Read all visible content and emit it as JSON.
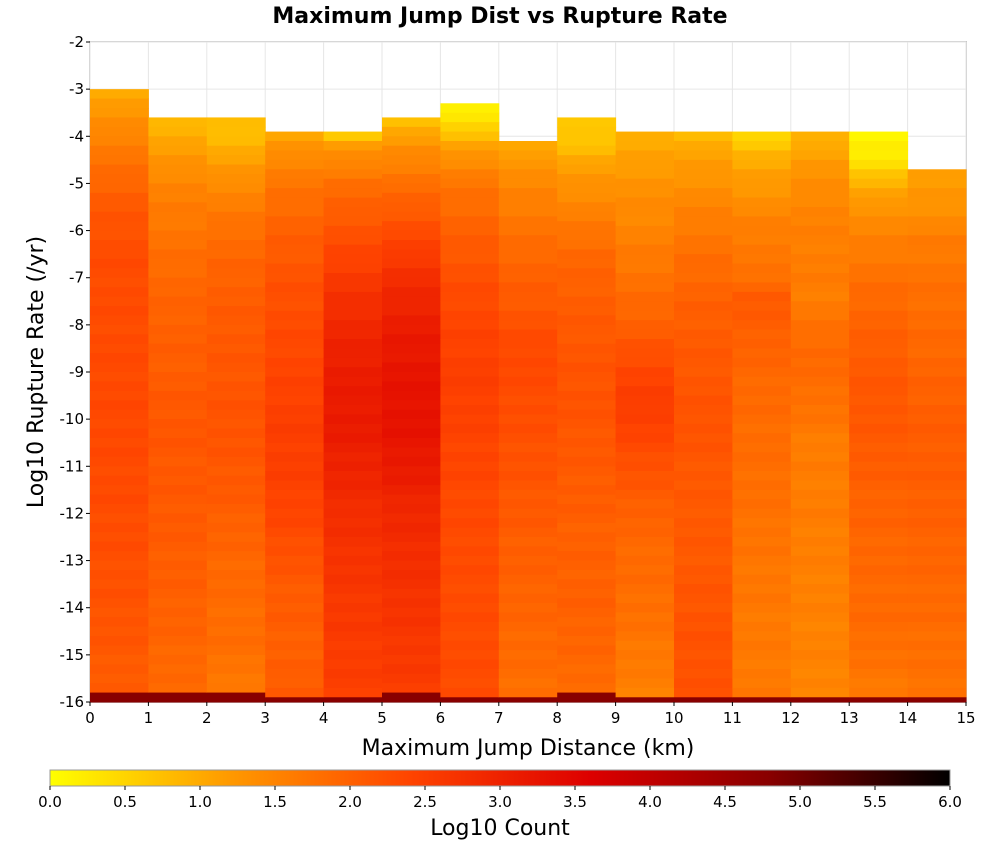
{
  "chart_data": {
    "type": "heatmap",
    "title": "Maximum Jump Dist vs Rupture Rate",
    "xlabel": "Maximum Jump Distance (km)",
    "ylabel": "Log10 Rupture Rate (/yr)",
    "xlim": [
      0,
      15
    ],
    "ylim": [
      -16,
      -2
    ],
    "x_ticks": [
      "0",
      "1",
      "2",
      "3",
      "4",
      "5",
      "6",
      "7",
      "8",
      "9",
      "10",
      "11",
      "12",
      "13",
      "14",
      "15"
    ],
    "y_ticks": [
      "-2",
      "-3",
      "-4",
      "-5",
      "-6",
      "-7",
      "-8",
      "-9",
      "-10",
      "-11",
      "-12",
      "-13",
      "-14",
      "-15",
      "-16"
    ],
    "grid": true,
    "x_bin_edges": [
      0,
      1,
      2,
      3,
      4,
      5,
      6,
      7,
      8,
      9,
      10,
      11,
      12,
      13,
      14,
      15
    ],
    "y_bin_size": 0.2,
    "colorbar": {
      "label": "Log10 Count",
      "range": [
        0.0,
        6.0
      ],
      "ticks": [
        "0.0",
        "0.5",
        "1.0",
        "1.5",
        "2.0",
        "2.5",
        "3.0",
        "3.5",
        "4.0",
        "4.5",
        "5.0",
        "5.5",
        "6.0"
      ],
      "colors": [
        "#ffff00",
        "#ff9900",
        "#ff4400",
        "#dd0000",
        "#880000",
        "#000000"
      ]
    },
    "columns": [
      {
        "x": [
          0,
          1
        ],
        "top": -3.0,
        "bottom_value": 4.8,
        "profile": [
          [
            -3.0,
            1.0
          ],
          [
            -3.6,
            1.3
          ],
          [
            -4.4,
            1.7
          ],
          [
            -5.4,
            2.1
          ],
          [
            -6.5,
            2.3
          ],
          [
            -8.0,
            2.3
          ],
          [
            -10.0,
            2.35
          ],
          [
            -12.0,
            2.3
          ],
          [
            -14.0,
            2.2
          ],
          [
            -15.8,
            2.05
          ]
        ]
      },
      {
        "x": [
          1,
          2
        ],
        "top": -3.6,
        "bottom_value": 4.8,
        "profile": [
          [
            -3.6,
            0.8
          ],
          [
            -4.0,
            1.0
          ],
          [
            -5.0,
            1.5
          ],
          [
            -6.0,
            1.7
          ],
          [
            -7.0,
            1.9
          ],
          [
            -8.0,
            2.0
          ],
          [
            -9.0,
            2.05
          ],
          [
            -10.0,
            2.15
          ],
          [
            -12.0,
            2.1
          ],
          [
            -14.0,
            2.0
          ],
          [
            -15.8,
            1.85
          ]
        ]
      },
      {
        "x": [
          2,
          3
        ],
        "top": -3.6,
        "bottom_value": 4.8,
        "profile": [
          [
            -3.6,
            0.7
          ],
          [
            -4.0,
            0.8
          ],
          [
            -5.0,
            1.4
          ],
          [
            -6.0,
            1.8
          ],
          [
            -7.0,
            2.0
          ],
          [
            -8.0,
            2.1
          ],
          [
            -9.0,
            2.15
          ],
          [
            -10.0,
            2.2
          ],
          [
            -11.5,
            2.1
          ],
          [
            -13.0,
            1.9
          ],
          [
            -15.0,
            1.8
          ],
          [
            -15.8,
            1.6
          ]
        ]
      },
      {
        "x": [
          3,
          4
        ],
        "top": -3.9,
        "bottom_value": 4.8,
        "profile": [
          [
            -3.9,
            1.0
          ],
          [
            -4.4,
            1.4
          ],
          [
            -5.0,
            1.7
          ],
          [
            -6.0,
            2.0
          ],
          [
            -7.0,
            2.2
          ],
          [
            -8.0,
            2.3
          ],
          [
            -9.0,
            2.4
          ],
          [
            -10.0,
            2.5
          ],
          [
            -11.0,
            2.5
          ],
          [
            -12.0,
            2.4
          ],
          [
            -13.5,
            2.1
          ],
          [
            -15.0,
            2.0
          ],
          [
            -15.8,
            2.1
          ]
        ]
      },
      {
        "x": [
          4,
          5
        ],
        "top": -3.9,
        "bottom_value": 4.8,
        "profile": [
          [
            -3.9,
            0.3
          ],
          [
            -4.2,
            1.2
          ],
          [
            -5.0,
            1.8
          ],
          [
            -6.0,
            2.2
          ],
          [
            -7.0,
            2.6
          ],
          [
            -8.0,
            2.9
          ],
          [
            -9.0,
            3.1
          ],
          [
            -10.0,
            3.15
          ],
          [
            -11.0,
            3.0
          ],
          [
            -12.0,
            2.8
          ],
          [
            -13.0,
            2.7
          ],
          [
            -14.0,
            2.6
          ],
          [
            -15.0,
            2.55
          ],
          [
            -15.8,
            2.5
          ]
        ]
      },
      {
        "x": [
          5,
          6
        ],
        "top": -3.6,
        "bottom_value": 4.8,
        "profile": [
          [
            -3.6,
            0.7
          ],
          [
            -4.2,
            1.3
          ],
          [
            -5.0,
            1.8
          ],
          [
            -6.0,
            2.3
          ],
          [
            -7.0,
            2.8
          ],
          [
            -8.0,
            3.1
          ],
          [
            -9.0,
            3.25
          ],
          [
            -10.0,
            3.3
          ],
          [
            -11.0,
            3.15
          ],
          [
            -12.0,
            2.9
          ],
          [
            -13.0,
            2.8
          ],
          [
            -14.0,
            2.7
          ],
          [
            -15.0,
            2.6
          ],
          [
            -15.8,
            2.55
          ]
        ]
      },
      {
        "x": [
          6,
          7
        ],
        "top": -3.3,
        "bottom_value": 4.8,
        "profile": [
          [
            -3.3,
            0.1
          ],
          [
            -3.8,
            0.5
          ],
          [
            -4.4,
            1.3
          ],
          [
            -5.0,
            1.7
          ],
          [
            -6.0,
            2.0
          ],
          [
            -7.0,
            2.25
          ],
          [
            -8.0,
            2.4
          ],
          [
            -9.0,
            2.5
          ],
          [
            -10.0,
            2.45
          ],
          [
            -11.5,
            2.35
          ],
          [
            -13.0,
            2.3
          ],
          [
            -14.5,
            2.3
          ],
          [
            -15.8,
            2.3
          ]
        ]
      },
      {
        "x": [
          7,
          8
        ],
        "top": -4.1,
        "bottom_value": 4.8,
        "profile": [
          [
            -4.1,
            0.9
          ],
          [
            -4.6,
            1.3
          ],
          [
            -5.5,
            1.6
          ],
          [
            -6.5,
            1.9
          ],
          [
            -7.5,
            2.1
          ],
          [
            -8.5,
            2.35
          ],
          [
            -9.5,
            2.3
          ],
          [
            -11.0,
            2.2
          ],
          [
            -12.5,
            2.05
          ],
          [
            -14.0,
            1.95
          ],
          [
            -15.8,
            1.8
          ]
        ]
      },
      {
        "x": [
          8,
          9
        ],
        "top": -3.6,
        "bottom_value": 4.8,
        "profile": [
          [
            -3.6,
            0.7
          ],
          [
            -4.0,
            0.6
          ],
          [
            -4.6,
            1.1
          ],
          [
            -5.5,
            1.5
          ],
          [
            -6.5,
            1.9
          ],
          [
            -7.5,
            2.05
          ],
          [
            -8.5,
            2.15
          ],
          [
            -9.5,
            2.2
          ],
          [
            -11.0,
            2.1
          ],
          [
            -12.5,
            2.0
          ],
          [
            -14.0,
            2.0
          ],
          [
            -15.8,
            1.85
          ]
        ]
      },
      {
        "x": [
          9,
          10
        ],
        "top": -3.9,
        "bottom_value": 4.8,
        "profile": [
          [
            -3.9,
            0.9
          ],
          [
            -5.0,
            1.3
          ],
          [
            -6.0,
            1.5
          ],
          [
            -7.0,
            1.75
          ],
          [
            -8.0,
            2.0
          ],
          [
            -9.0,
            2.4
          ],
          [
            -9.8,
            2.55
          ],
          [
            -10.5,
            2.35
          ],
          [
            -11.5,
            2.1
          ],
          [
            -12.5,
            1.9
          ],
          [
            -14.0,
            1.8
          ],
          [
            -15.8,
            1.55
          ]
        ]
      },
      {
        "x": [
          10,
          11
        ],
        "top": -3.9,
        "bottom_value": 4.8,
        "profile": [
          [
            -3.9,
            0.8
          ],
          [
            -4.4,
            1.1
          ],
          [
            -5.5,
            1.5
          ],
          [
            -6.5,
            1.8
          ],
          [
            -7.5,
            2.0
          ],
          [
            -8.5,
            2.1
          ],
          [
            -10.0,
            2.2
          ],
          [
            -11.5,
            2.1
          ],
          [
            -13.0,
            2.1
          ],
          [
            -14.5,
            2.2
          ],
          [
            -15.8,
            2.2
          ]
        ]
      },
      {
        "x": [
          11,
          12
        ],
        "top": -3.9,
        "bottom_value": 4.8,
        "profile": [
          [
            -3.9,
            0.4
          ],
          [
            -4.4,
            0.9
          ],
          [
            -5.0,
            1.2
          ],
          [
            -6.0,
            1.6
          ],
          [
            -7.0,
            1.75
          ],
          [
            -7.3,
            2.1
          ],
          [
            -8.0,
            2.05
          ],
          [
            -9.0,
            1.9
          ],
          [
            -10.0,
            1.85
          ],
          [
            -11.5,
            1.8
          ],
          [
            -13.0,
            1.7
          ],
          [
            -14.5,
            1.65
          ],
          [
            -15.8,
            1.65
          ]
        ]
      },
      {
        "x": [
          12,
          13
        ],
        "top": -3.9,
        "bottom_value": 4.8,
        "profile": [
          [
            -3.9,
            0.8
          ],
          [
            -4.5,
            1.2
          ],
          [
            -5.5,
            1.5
          ],
          [
            -6.5,
            1.6
          ],
          [
            -7.5,
            1.6
          ],
          [
            -8.5,
            1.9
          ],
          [
            -9.5,
            1.8
          ],
          [
            -10.5,
            1.6
          ],
          [
            -12.0,
            1.6
          ],
          [
            -13.5,
            1.55
          ],
          [
            -15.8,
            1.5
          ]
        ]
      },
      {
        "x": [
          13,
          14
        ],
        "top": -3.9,
        "bottom_value": 4.8,
        "profile": [
          [
            -3.9,
            0.1
          ],
          [
            -4.4,
            0.2
          ],
          [
            -4.9,
            0.8
          ],
          [
            -5.5,
            1.3
          ],
          [
            -6.5,
            1.65
          ],
          [
            -7.5,
            1.9
          ],
          [
            -8.5,
            2.05
          ],
          [
            -9.5,
            2.15
          ],
          [
            -10.5,
            2.1
          ],
          [
            -11.5,
            2.0
          ],
          [
            -13.0,
            1.9
          ],
          [
            -14.5,
            1.85
          ],
          [
            -15.8,
            1.65
          ]
        ]
      },
      {
        "x": [
          14,
          15
        ],
        "top": -4.7,
        "bottom_value": 4.8,
        "profile": [
          [
            -4.7,
            1.1
          ],
          [
            -5.5,
            1.3
          ],
          [
            -6.2,
            1.6
          ],
          [
            -7.0,
            1.75
          ],
          [
            -8.0,
            1.85
          ],
          [
            -9.0,
            1.95
          ],
          [
            -10.0,
            2.05
          ],
          [
            -11.0,
            2.05
          ],
          [
            -12.0,
            2.0
          ],
          [
            -13.5,
            1.9
          ],
          [
            -15.0,
            1.8
          ],
          [
            -15.8,
            1.75
          ]
        ]
      }
    ]
  }
}
